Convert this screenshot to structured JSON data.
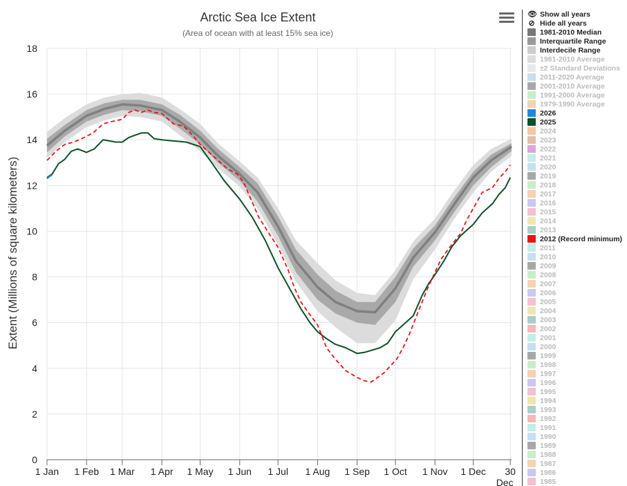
{
  "chart_data": {
    "type": "line",
    "title": "Arctic Sea Ice Extent",
    "subtitle": "(Area of ocean with at least 15% sea ice)",
    "ylabel": "Extent (Millions of square kilometers)",
    "xlabel": "",
    "ylim": [
      0,
      18
    ],
    "yticks": [
      0,
      2,
      4,
      6,
      8,
      10,
      12,
      14,
      16,
      18
    ],
    "xlim": [
      1,
      365
    ],
    "xticks": [
      {
        "day": 1,
        "label": "1 Jan"
      },
      {
        "day": 32,
        "label": "1 Feb"
      },
      {
        "day": 60,
        "label": "1 Mar"
      },
      {
        "day": 91,
        "label": "1 Apr"
      },
      {
        "day": 121,
        "label": "1 May"
      },
      {
        "day": 152,
        "label": "1 Jun"
      },
      {
        "day": 182,
        "label": "1 Jul"
      },
      {
        "day": 213,
        "label": "1 Aug"
      },
      {
        "day": 244,
        "label": "1 Sep"
      },
      {
        "day": 274,
        "label": "1 Oct"
      },
      {
        "day": 305,
        "label": "1 Nov"
      },
      {
        "day": 335,
        "label": "1 Dec"
      },
      {
        "day": 364,
        "label": "30 Dec"
      }
    ],
    "grid": true,
    "bands": {
      "day": [
        1,
        15,
        32,
        46,
        60,
        74,
        91,
        105,
        121,
        135,
        152,
        166,
        182,
        196,
        213,
        227,
        244,
        258,
        274,
        288,
        305,
        319,
        335,
        349,
        365
      ],
      "median": [
        13.75,
        14.4,
        15.05,
        15.35,
        15.55,
        15.5,
        15.3,
        14.8,
        14.1,
        13.3,
        12.5,
        11.7,
        10.2,
        8.7,
        7.55,
        6.9,
        6.5,
        6.45,
        7.5,
        8.85,
        9.95,
        11.1,
        12.35,
        13.1,
        13.7
      ],
      "iqr_low": [
        13.45,
        14.15,
        14.8,
        15.1,
        15.3,
        15.25,
        15.05,
        14.5,
        13.8,
        13.0,
        12.2,
        11.3,
        9.8,
        8.2,
        7.0,
        6.4,
        6.0,
        5.9,
        6.9,
        8.45,
        9.6,
        10.75,
        12.0,
        12.8,
        13.5
      ],
      "iqr_high": [
        14.05,
        14.65,
        15.3,
        15.6,
        15.75,
        15.75,
        15.55,
        15.1,
        14.4,
        13.6,
        12.8,
        12.1,
        10.65,
        9.2,
        8.1,
        7.4,
        6.9,
        6.9,
        8.0,
        9.25,
        10.25,
        11.4,
        12.6,
        13.35,
        13.85
      ],
      "idr_low": [
        13.2,
        13.9,
        14.55,
        14.85,
        15.05,
        15.0,
        14.8,
        14.2,
        13.5,
        12.75,
        11.95,
        11.0,
        9.4,
        7.8,
        6.5,
        5.8,
        5.1,
        5.1,
        6.1,
        7.9,
        9.2,
        10.45,
        11.7,
        12.6,
        13.3
      ],
      "idr_high": [
        14.35,
        14.95,
        15.55,
        15.85,
        16.0,
        16.05,
        15.85,
        15.35,
        14.7,
        13.85,
        13.05,
        12.35,
        11.0,
        9.6,
        8.6,
        7.85,
        7.3,
        7.2,
        8.3,
        9.55,
        10.55,
        11.7,
        12.9,
        13.6,
        14.05
      ]
    },
    "series": [
      {
        "name": "2025",
        "color": "#0d4f26",
        "dashed": false,
        "x": [
          1,
          5,
          10,
          15,
          20,
          25,
          32,
          38,
          45,
          50,
          55,
          60,
          65,
          70,
          75,
          80,
          85,
          91,
          100,
          110,
          121,
          130,
          140,
          152,
          162,
          172,
          182,
          192,
          200,
          207,
          213,
          220,
          227,
          235,
          244,
          250,
          256,
          262,
          268,
          274,
          280,
          288,
          295,
          300,
          305,
          312,
          318,
          325,
          335,
          342,
          350,
          355,
          360,
          364
        ],
        "y": [
          12.35,
          12.5,
          12.95,
          13.15,
          13.5,
          13.6,
          13.45,
          13.6,
          14.0,
          13.95,
          13.9,
          13.9,
          14.1,
          14.2,
          14.3,
          14.3,
          14.05,
          14.0,
          13.95,
          13.9,
          13.7,
          13.0,
          12.2,
          11.4,
          10.6,
          9.6,
          8.4,
          7.4,
          6.6,
          6.0,
          5.6,
          5.3,
          5.05,
          4.9,
          4.65,
          4.7,
          4.8,
          4.9,
          5.1,
          5.6,
          5.9,
          6.3,
          7.2,
          7.7,
          8.1,
          8.7,
          9.3,
          9.8,
          10.3,
          10.8,
          11.2,
          11.6,
          11.9,
          12.35
        ]
      },
      {
        "name": "2026",
        "color": "#1f7fd1",
        "dashed": false,
        "x": [
          1,
          3,
          5
        ],
        "y": [
          12.3,
          12.4,
          12.45
        ]
      },
      {
        "name": "2012 (Record minimum)",
        "color": "#e8121b",
        "dashed": true,
        "x": [
          1,
          8,
          15,
          22,
          30,
          37,
          45,
          52,
          60,
          65,
          70,
          75,
          80,
          85,
          91,
          100,
          108,
          115,
          121,
          128,
          135,
          142,
          150,
          155,
          160,
          167,
          175,
          182,
          190,
          195,
          200,
          205,
          213,
          220,
          227,
          235,
          244,
          250,
          255,
          260,
          265,
          270,
          275,
          280,
          285,
          292,
          300,
          305,
          310,
          318,
          325,
          330,
          335,
          342,
          350,
          355,
          360,
          364
        ],
        "y": [
          13.1,
          13.5,
          13.8,
          13.9,
          14.1,
          14.3,
          14.7,
          14.8,
          14.9,
          15.2,
          15.3,
          15.2,
          15.3,
          15.2,
          15.15,
          14.7,
          14.6,
          14.2,
          13.8,
          13.45,
          13.1,
          12.75,
          12.5,
          12.15,
          11.5,
          10.6,
          9.9,
          9.3,
          8.3,
          7.5,
          6.9,
          6.5,
          5.9,
          4.9,
          4.4,
          3.9,
          3.6,
          3.45,
          3.4,
          3.6,
          3.8,
          4.1,
          4.4,
          4.9,
          5.5,
          6.5,
          7.6,
          8.2,
          8.8,
          9.4,
          9.9,
          10.5,
          11.0,
          11.7,
          11.9,
          12.3,
          12.6,
          12.9
        ]
      }
    ]
  },
  "menu_label": "Chart context menu",
  "legend": [
    {
      "label": "Show all years",
      "icon": "eye-icon",
      "glyph": "👁",
      "on": true
    },
    {
      "label": "Hide all years",
      "icon": "eye-slash-icon",
      "glyph": "⊘",
      "on": true
    },
    {
      "label": "1981-2010 Median",
      "color": "#777777",
      "on": true
    },
    {
      "label": "Interquartile Range",
      "color": "#999999",
      "on": true
    },
    {
      "label": "Interdecile Range",
      "color": "#cccccc",
      "on": true
    },
    {
      "label": "1981-2010 Average",
      "color": "#dddddd",
      "on": false
    },
    {
      "label": "±2 Standard Deviations",
      "color": "#e8e8e8",
      "on": false
    },
    {
      "label": "2011-2020 Average",
      "color": "#c6dff2",
      "on": false
    },
    {
      "label": "2001-2010 Average",
      "color": "#a8a8a8",
      "on": false
    },
    {
      "label": "1991-2000 Average",
      "color": "#c8eec8",
      "on": false
    },
    {
      "label": "1979-1990 Average",
      "color": "#f5d2b0",
      "on": false
    },
    {
      "label": "2026",
      "color": "#1f88e5",
      "on": true
    },
    {
      "label": "2025",
      "color": "#0d4f26",
      "on": true
    },
    {
      "label": "2024",
      "color": "#f5c6a0",
      "on": false
    },
    {
      "label": "2023",
      "color": "#e0bfa8",
      "on": false
    },
    {
      "label": "2022",
      "color": "#d9a6d9",
      "on": false
    },
    {
      "label": "2021",
      "color": "#c3ecec",
      "on": false
    },
    {
      "label": "2020",
      "color": "#c6dff2",
      "on": false
    },
    {
      "label": "2019",
      "color": "#a8a8a8",
      "on": false
    },
    {
      "label": "2018",
      "color": "#c8eec8",
      "on": false
    },
    {
      "label": "2017",
      "color": "#f5d2b0",
      "on": false
    },
    {
      "label": "2016",
      "color": "#c8c8f0",
      "on": false
    },
    {
      "label": "2015",
      "color": "#f5c0d0",
      "on": false
    },
    {
      "label": "2014",
      "color": "#f0e6b0",
      "on": false
    },
    {
      "label": "2013",
      "color": "#a8cfc8",
      "on": false
    },
    {
      "label": "2012 (Record minimum)",
      "color": "#ee1111",
      "on": true
    },
    {
      "label": "2011",
      "color": "#c3ecec",
      "on": false
    },
    {
      "label": "2010",
      "color": "#c6dff2",
      "on": false
    },
    {
      "label": "2009",
      "color": "#a8a8a8",
      "on": false
    },
    {
      "label": "2008",
      "color": "#c8eec8",
      "on": false
    },
    {
      "label": "2007",
      "color": "#f5d2b0",
      "on": false
    },
    {
      "label": "2006",
      "color": "#c8c8f0",
      "on": false
    },
    {
      "label": "2005",
      "color": "#f5c0d0",
      "on": false
    },
    {
      "label": "2004",
      "color": "#f0e6b0",
      "on": false
    },
    {
      "label": "2003",
      "color": "#a8cfc8",
      "on": false
    },
    {
      "label": "2002",
      "color": "#f5b8b8",
      "on": false
    },
    {
      "label": "2001",
      "color": "#c3ecec",
      "on": false
    },
    {
      "label": "2000",
      "color": "#c6dff2",
      "on": false
    },
    {
      "label": "1999",
      "color": "#a8a8a8",
      "on": false
    },
    {
      "label": "1998",
      "color": "#c8eec8",
      "on": false
    },
    {
      "label": "1997",
      "color": "#f5d2b0",
      "on": false
    },
    {
      "label": "1996",
      "color": "#c8c8f0",
      "on": false
    },
    {
      "label": "1995",
      "color": "#f5c0d0",
      "on": false
    },
    {
      "label": "1994",
      "color": "#f0e6b0",
      "on": false
    },
    {
      "label": "1993",
      "color": "#a8cfc8",
      "on": false
    },
    {
      "label": "1992",
      "color": "#f5b8b8",
      "on": false
    },
    {
      "label": "1991",
      "color": "#c3ecec",
      "on": false
    },
    {
      "label": "1990",
      "color": "#c6dff2",
      "on": false
    },
    {
      "label": "1989",
      "color": "#a8a8a8",
      "on": false
    },
    {
      "label": "1988",
      "color": "#c8eec8",
      "on": false
    },
    {
      "label": "1987",
      "color": "#f5d2b0",
      "on": false
    },
    {
      "label": "1986",
      "color": "#c8c8f0",
      "on": false
    },
    {
      "label": "1985",
      "color": "#f5c0d0",
      "on": false
    }
  ]
}
